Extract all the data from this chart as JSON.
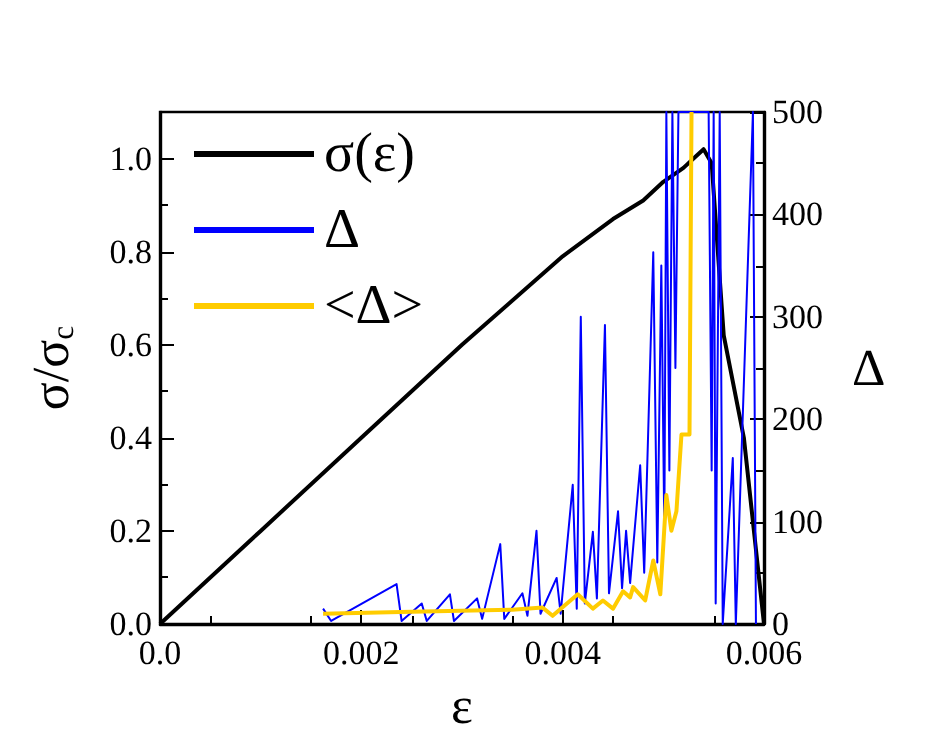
{
  "chart_data": {
    "type": "line",
    "xlabel": "ε",
    "ylabel": "σ/σ$_{c}$",
    "y2label": "Δ",
    "xlim": [
      0,
      0.006
    ],
    "xticks": [
      {
        "value": 0,
        "label": "0.0"
      },
      0.002,
      0.004,
      0.006
    ],
    "ylim": [
      0,
      1.1
    ],
    "yticks": [
      {
        "value": 0,
        "label": "0.0"
      },
      0.2,
      0.4,
      0.6,
      0.8,
      {
        "value": 1,
        "label": "1.0"
      }
    ],
    "y2lim": [
      0,
      500
    ],
    "y2ticks": [
      0,
      100,
      200,
      300,
      400,
      500
    ],
    "grid": false,
    "legend": "top left",
    "marker": "none",
    "line_style": "solid",
    "series": [
      {
        "name": "σ(ε)",
        "color": "#000000",
        "x": [
          0,
          0.001,
          0.002,
          0.003,
          0.004,
          0.0045,
          0.0048,
          0.005,
          0.0052,
          0.0053,
          0.0054,
          0.00548,
          0.0056,
          0.0058,
          0.006
        ],
        "values": [
          0,
          0.2,
          0.4,
          0.6,
          0.79,
          0.87,
          0.91,
          0.95,
          0.98,
          1.0,
          1.02,
          0.99,
          0.62,
          0.4,
          0
        ]
      },
      {
        "name": "Δ",
        "color": "#0000ff",
        "axis": "y2",
        "x": [
          0.00162,
          0.0017,
          0.00235,
          0.0024,
          0.0026,
          0.00265,
          0.00288,
          0.00292,
          0.00315,
          0.0032,
          0.00338,
          0.00342,
          0.0036,
          0.00365,
          0.00374,
          0.00378,
          0.00394,
          0.00398,
          0.0041,
          0.00414,
          0.00418,
          0.00422,
          0.0043,
          0.00434,
          0.00442,
          0.00446,
          0.00455,
          0.00459,
          0.00463,
          0.00467,
          0.00477,
          0.00481,
          0.0049,
          0.00494,
          0.00498,
          0.00501,
          0.00503,
          0.00506,
          0.00509,
          0.00512,
          0.00515,
          0.0052,
          0.0053,
          0.0054,
          0.00545,
          0.00548,
          0.0055,
          0.00552,
          0.00556,
          0.00559,
          0.00569,
          0.00572,
          0.00589,
          0.00592
        ],
        "values": [
          15,
          3,
          39,
          3,
          20,
          3,
          29,
          3,
          25,
          5,
          78,
          5,
          30,
          8,
          91,
          10,
          45,
          10,
          136,
          15,
          300,
          20,
          90,
          25,
          292,
          30,
          110,
          35,
          91,
          40,
          155,
          50,
          363,
          60,
          350,
          90,
          500,
          150,
          500,
          250,
          500,
          500,
          500,
          500,
          500,
          150,
          500,
          20,
          500,
          0,
          162,
          0,
          500,
          0
        ]
      },
      {
        "name": "<Δ>",
        "color": "#ffcc00",
        "axis": "y2",
        "x": [
          0.00162,
          0.0025,
          0.0035,
          0.0038,
          0.0039,
          0.00415,
          0.0043,
          0.0044,
          0.0045,
          0.0046,
          0.00467,
          0.0047,
          0.00482,
          0.0049,
          0.00497,
          0.00503,
          0.00508,
          0.00513,
          0.00518,
          0.00526,
          0.00528
        ],
        "values": [
          10,
          12,
          14,
          16,
          8,
          29,
          15,
          23,
          15,
          32,
          26,
          36,
          23,
          62,
          29,
          126,
          91,
          110,
          185,
          185,
          500
        ]
      }
    ]
  }
}
